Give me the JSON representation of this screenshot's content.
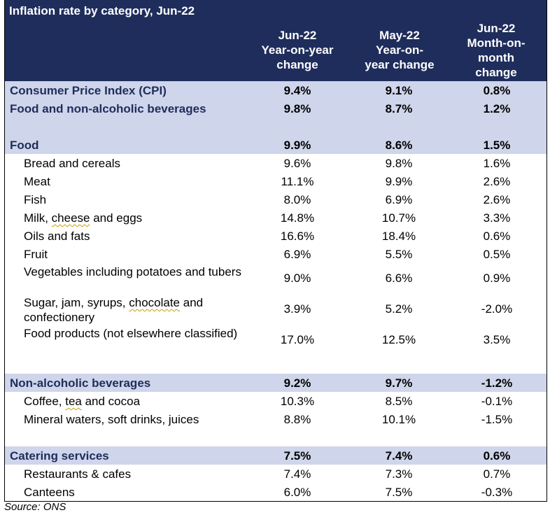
{
  "title": "Inflation rate by category, Jun-22",
  "columns": {
    "c1": "Jun-22 Year-on-year change",
    "c2": "May-22 Year-on-year change",
    "c3": "Jun-22 Month-on-month change"
  },
  "rows": {
    "cpi": {
      "label": "Consumer Price Index (CPI)",
      "v1": "9.4%",
      "v2": "9.1%",
      "v3": "0.8%"
    },
    "fnab": {
      "label": "Food and non-alcoholic beverages",
      "v1": "9.8%",
      "v2": "8.7%",
      "v3": "1.2%"
    },
    "food": {
      "label": "Food",
      "v1": "9.9%",
      "v2": "8.6%",
      "v3": "1.5%"
    },
    "bread": {
      "label": "Bread and cereals",
      "v1": "9.6%",
      "v2": "9.8%",
      "v3": "1.6%"
    },
    "meat": {
      "label": "Meat",
      "v1": "11.1%",
      "v2": "9.9%",
      "v3": "2.6%"
    },
    "fish": {
      "label": "Fish",
      "v1": "8.0%",
      "v2": "6.9%",
      "v3": "2.6%"
    },
    "milk": {
      "label_a": "Milk, ",
      "label_b": "cheese",
      "label_c": " and eggs",
      "v1": "14.8%",
      "v2": "10.7%",
      "v3": "3.3%"
    },
    "oils": {
      "label": "Oils and fats",
      "v1": "16.6%",
      "v2": "18.4%",
      "v3": "0.6%"
    },
    "fruit": {
      "label": "Fruit",
      "v1": "6.9%",
      "v2": "5.5%",
      "v3": "0.5%"
    },
    "veg": {
      "label": "Vegetables including potatoes and tubers",
      "v1": "9.0%",
      "v2": "6.6%",
      "v3": "0.9%"
    },
    "sugar": {
      "label_a": "Sugar, jam, syrups, ",
      "label_b": "chocolate",
      "label_c": " and confectionery",
      "v1": "3.9%",
      "v2": "5.2%",
      "v3": "-2.0%"
    },
    "foodprod": {
      "label": "Food products (not elsewhere classified)",
      "v1": "17.0%",
      "v2": "12.5%",
      "v3": "3.5%"
    },
    "nab": {
      "label": "Non-alcoholic beverages",
      "v1": "9.2%",
      "v2": "9.7%",
      "v3": "-1.2%"
    },
    "coffee": {
      "label_a": "Coffee, ",
      "label_b": "tea",
      "label_c": " and cocoa",
      "v1": "10.3%",
      "v2": "8.5%",
      "v3": "-0.1%"
    },
    "mineral": {
      "label": "Mineral waters, soft drinks, juices",
      "v1": "8.8%",
      "v2": "10.1%",
      "v3": "-1.5%"
    },
    "catering": {
      "label": "Catering services",
      "v1": "7.5%",
      "v2": "7.4%",
      "v3": "0.6%"
    },
    "restaurants": {
      "label": "Restaurants & cafes",
      "v1": "7.4%",
      "v2": "7.3%",
      "v3": "0.7%"
    },
    "canteens": {
      "label": "Canteens",
      "v1": "6.0%",
      "v2": "7.5%",
      "v3": "-0.3%"
    }
  },
  "source": "Source: ONS"
}
